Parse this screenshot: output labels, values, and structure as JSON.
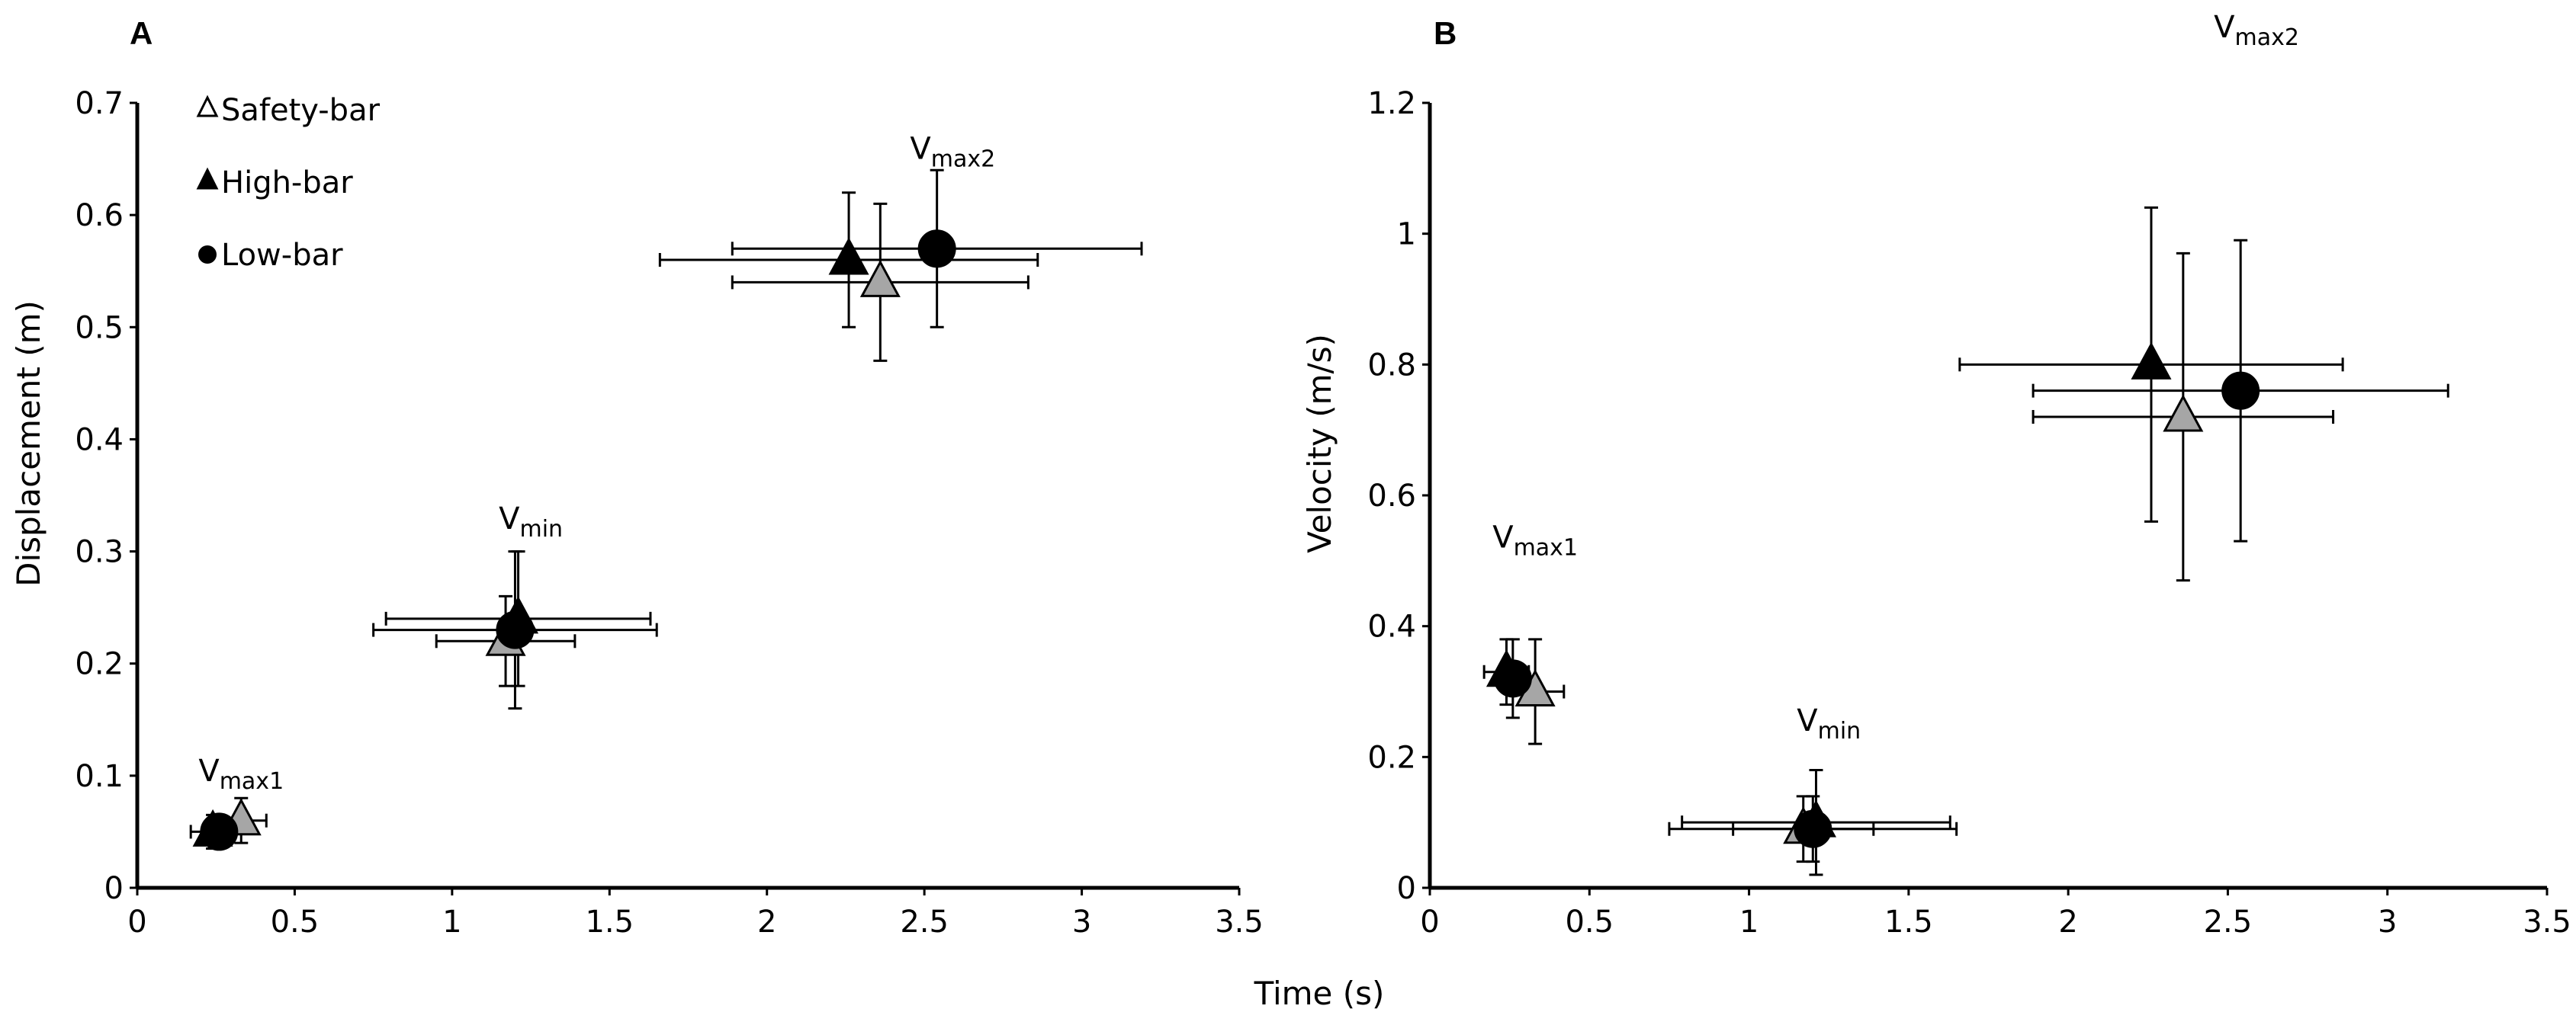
{
  "chart_data": [
    {
      "panel": "A",
      "type": "scatter",
      "xlabel": "",
      "ylabel": "Displacement (m)",
      "xlim": [
        0,
        3.5
      ],
      "ylim": [
        0,
        0.7
      ],
      "xticks": [
        "0",
        "0.5",
        "1",
        "1.5",
        "2",
        "2.5",
        "3",
        "3.5"
      ],
      "yticks": [
        "0",
        "0.1",
        "0.2",
        "0.3",
        "0.4",
        "0.5",
        "0.6",
        "0.7"
      ],
      "legend_position": "top-left",
      "legend": [
        "Safety-bar",
        "High-bar",
        "Low-bar"
      ],
      "series": [
        {
          "name": "Safety-bar",
          "marker": "triangle",
          "color": "#a6a6a6",
          "points": [
            {
              "x": 0.33,
              "y": 0.06,
              "xerr": 0.08,
              "yerr": 0.02
            },
            {
              "x": 1.17,
              "y": 0.22,
              "xerr": 0.22,
              "yerr": 0.04
            },
            {
              "x": 2.36,
              "y": 0.54,
              "xerr": 0.47,
              "yerr": 0.07
            }
          ]
        },
        {
          "name": "High-bar",
          "marker": "triangle",
          "color": "#000000",
          "points": [
            {
              "x": 0.24,
              "y": 0.05,
              "xerr": 0.07,
              "yerr": 0.015
            },
            {
              "x": 1.21,
              "y": 0.24,
              "xerr": 0.42,
              "yerr": 0.06
            },
            {
              "x": 2.26,
              "y": 0.56,
              "xerr": 0.6,
              "yerr": 0.06
            }
          ]
        },
        {
          "name": "Low-bar",
          "marker": "circle",
          "color": "#000000",
          "points": [
            {
              "x": 0.26,
              "y": 0.05,
              "xerr": 0.05,
              "yerr": 0.01
            },
            {
              "x": 1.2,
              "y": 0.23,
              "xerr": 0.45,
              "yerr": 0.07
            },
            {
              "x": 2.54,
              "y": 0.57,
              "xerr": 0.65,
              "yerr": 0.07
            }
          ]
        }
      ],
      "annotations": [
        {
          "base": "V",
          "sub": "max1",
          "x": 0.33,
          "y": 0.095
        },
        {
          "base": "V",
          "sub": "min",
          "x": 1.25,
          "y": 0.32
        },
        {
          "base": "V",
          "sub": "max2",
          "x": 2.59,
          "y": 0.65
        }
      ]
    },
    {
      "panel": "B",
      "type": "scatter",
      "xlabel": "Time (s)",
      "ylabel": "Velocity (m/s)",
      "xlim": [
        0,
        3.5
      ],
      "ylim": [
        0,
        1.2
      ],
      "xticks": [
        "0",
        "0.5",
        "1",
        "1.5",
        "2",
        "2.5",
        "3",
        "3.5"
      ],
      "yticks": [
        "0",
        "0.2",
        "0.4",
        "0.6",
        "0.8",
        "1",
        "1.2"
      ],
      "series": [
        {
          "name": "Safety-bar",
          "marker": "triangle",
          "color": "#a6a6a6",
          "points": [
            {
              "x": 0.33,
              "y": 0.3,
              "xerr": 0.09,
              "yerr": 0.08
            },
            {
              "x": 1.17,
              "y": 0.09,
              "xerr": 0.22,
              "yerr": 0.05
            },
            {
              "x": 2.36,
              "y": 0.72,
              "xerr": 0.47,
              "yerr": 0.25
            }
          ]
        },
        {
          "name": "High-bar",
          "marker": "triangle",
          "color": "#000000",
          "points": [
            {
              "x": 0.24,
              "y": 0.33,
              "xerr": 0.07,
              "yerr": 0.05
            },
            {
              "x": 1.21,
              "y": 0.1,
              "xerr": 0.42,
              "yerr": 0.08
            },
            {
              "x": 2.26,
              "y": 0.8,
              "xerr": 0.6,
              "yerr": 0.24
            }
          ]
        },
        {
          "name": "Low-bar",
          "marker": "circle",
          "color": "#000000",
          "points": [
            {
              "x": 0.26,
              "y": 0.32,
              "xerr": 0.05,
              "yerr": 0.06
            },
            {
              "x": 1.2,
              "y": 0.09,
              "xerr": 0.45,
              "yerr": 0.05
            },
            {
              "x": 2.54,
              "y": 0.76,
              "xerr": 0.65,
              "yerr": 0.23
            }
          ]
        }
      ],
      "annotations": [
        {
          "base": "V",
          "sub": "max1",
          "x": 0.33,
          "y": 0.52
        },
        {
          "base": "V",
          "sub": "min",
          "x": 1.25,
          "y": 0.24
        },
        {
          "base": "V",
          "sub": "max2",
          "x": 2.59,
          "y": 1.3
        }
      ]
    }
  ]
}
